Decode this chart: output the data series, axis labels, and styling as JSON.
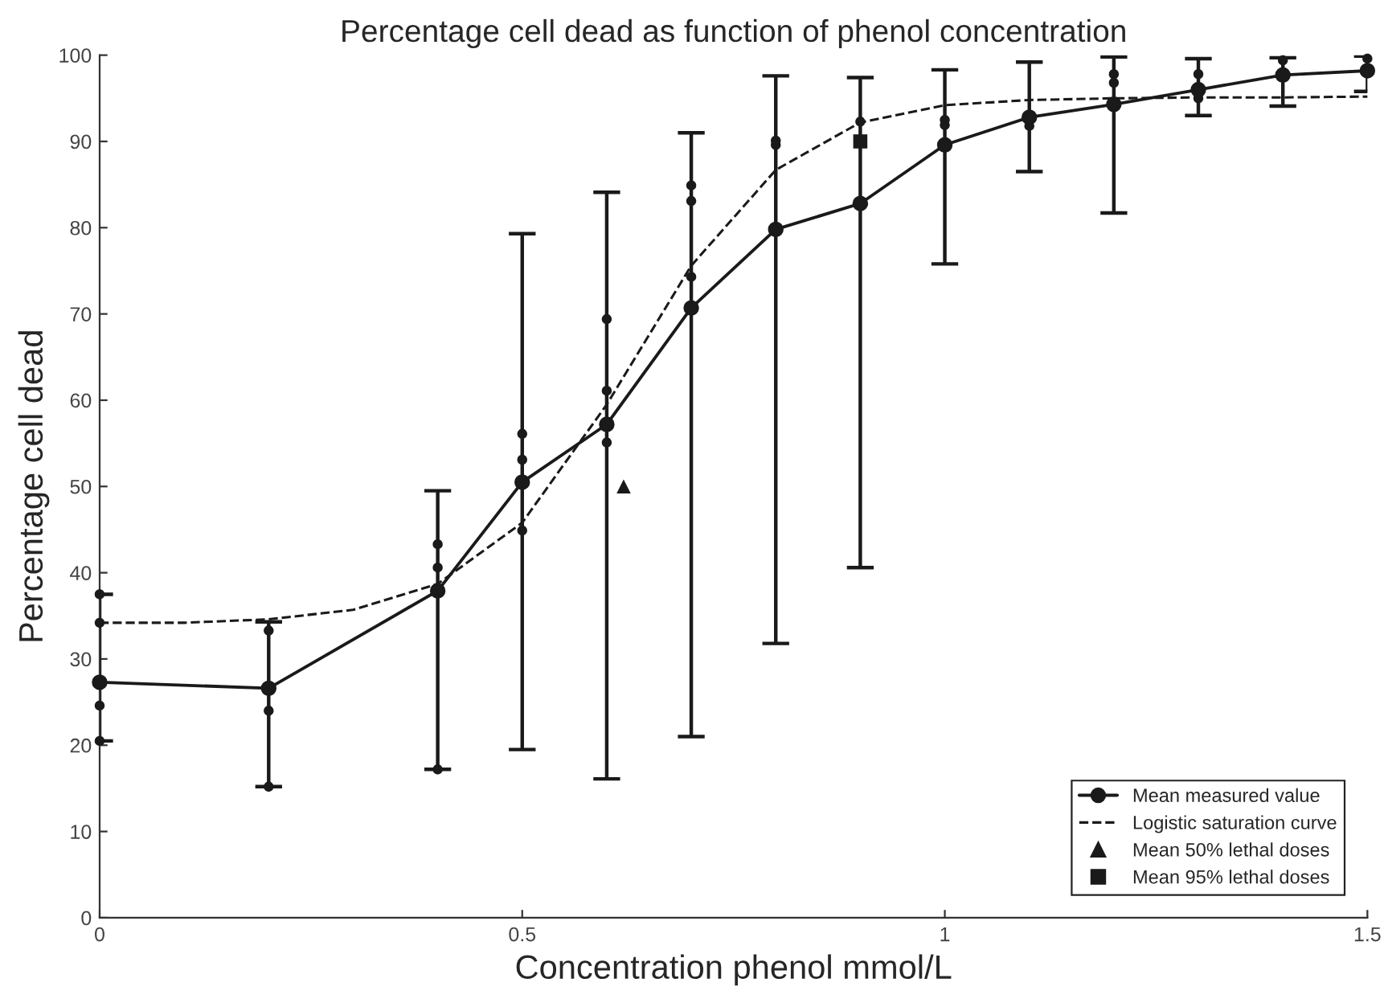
{
  "chart_data": {
    "type": "line",
    "title": "Percentage cell dead as function of phenol concentration",
    "xlabel": "Concentration phenol mmol/L",
    "ylabel": "Percentage cell dead",
    "xlim": [
      0,
      1.5
    ],
    "xticks": [
      0,
      0.5,
      1,
      1.5
    ],
    "ylim": [
      0,
      100
    ],
    "yticks": [
      0,
      10,
      20,
      30,
      40,
      50,
      60,
      70,
      80,
      90,
      100
    ],
    "grid": false,
    "legend": "bottom right",
    "series": [
      {
        "name": "Mean measured value",
        "marker": "circle",
        "line_style": "solid",
        "color": "#1a1a1a",
        "x": [
          0,
          0.2,
          0.4,
          0.5,
          0.6,
          0.7,
          0.8,
          0.9,
          1.0,
          1.1,
          1.2,
          1.3,
          1.4,
          1.5
        ],
        "values": [
          27.3,
          26.6,
          37.9,
          50.5,
          57.2,
          70.7,
          79.8,
          82.8,
          89.6,
          92.8,
          94.3,
          96.0,
          97.7,
          98.2
        ],
        "errors": [
          [
            20.5,
            37.5
          ],
          [
            15.2,
            34.3
          ],
          [
            17.2,
            49.5
          ],
          [
            19.5,
            79.3
          ],
          [
            16.1,
            84.1
          ],
          [
            21,
            91
          ],
          [
            31.8,
            97.6
          ],
          [
            40.6,
            97.4
          ],
          [
            75.8,
            98.3
          ],
          [
            86.5,
            99.2
          ],
          [
            81.7,
            99.8
          ],
          [
            93,
            99.6
          ],
          [
            94.1,
            99.7
          ],
          [
            95.8,
            99.9
          ]
        ]
      },
      {
        "name": "Logistic saturation curve",
        "marker": "none",
        "line_style": "dashed",
        "color": "#1a1a1a",
        "x": [
          0,
          0.1,
          0.2,
          0.3,
          0.4,
          0.5,
          0.6,
          0.7,
          0.8,
          0.9,
          1.0,
          1.1,
          1.2,
          1.3,
          1.4,
          1.5
        ],
        "values": [
          34.2,
          34.2,
          34.6,
          35.7,
          38.7,
          45.8,
          59.5,
          75.6,
          86.7,
          92.2,
          94.2,
          94.8,
          95.0,
          95.1,
          95.1,
          95.2
        ]
      },
      {
        "name": "Mean 50% lethal doses",
        "type": "scatter",
        "marker": "triangle",
        "color": "#1a1a1a",
        "x": [
          0.62
        ],
        "values": [
          50
        ]
      },
      {
        "name": "Mean 95% lethal doses",
        "type": "scatter",
        "marker": "square",
        "color": "#1a1a1a",
        "x": [
          0.9
        ],
        "values": [
          90
        ]
      },
      {
        "type": "scatter",
        "marker": "circle",
        "color": "#1a1a1a",
        "x": [
          0,
          0,
          0,
          0,
          0.2,
          0.2,
          0.2,
          0.4,
          0.4,
          0.4,
          0.5,
          0.5,
          0.5,
          0.6,
          0.6,
          0.6,
          0.7,
          0.7,
          0.7,
          0.8,
          0.8,
          0.9,
          1.0,
          1.0,
          1.1,
          1.2,
          1.2,
          1.3,
          1.3,
          1.4,
          1.5
        ],
        "values": [
          37.5,
          34.2,
          24.6,
          20.5,
          33.3,
          24.0,
          15.2,
          43.3,
          40.6,
          17.2,
          56.1,
          53.1,
          44.9,
          69.4,
          61.1,
          55.1,
          84.9,
          83.1,
          74.3,
          90.1,
          89.6,
          92.3,
          92.5,
          91.9,
          91.8,
          97.8,
          96.8,
          97.8,
          95.0,
          99.4,
          99.6
        ]
      }
    ]
  }
}
